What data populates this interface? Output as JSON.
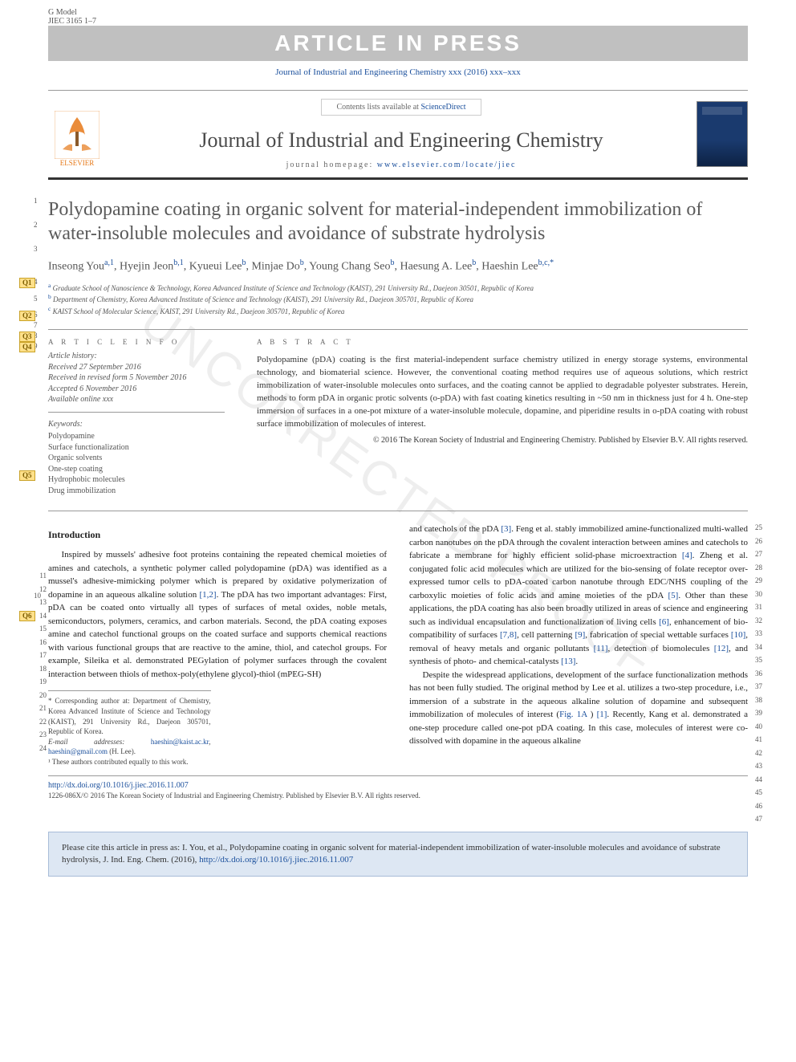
{
  "header": {
    "g_model": "G Model",
    "jiec_code": "JIEC 3165 1–7",
    "watermark_banner": "ARTICLE IN PRESS",
    "journal_ref": "Journal of Industrial and Engineering Chemistry xxx (2016) xxx–xxx",
    "contents_prefix": "Contents lists available at ",
    "contents_link": "ScienceDirect",
    "journal_title": "Journal of Industrial and Engineering Chemistry",
    "homepage_prefix": "journal homepage: ",
    "homepage_link": "www.elsevier.com/locate/jiec",
    "elsevier_label": "ELSEVIER"
  },
  "title": "Polydopamine coating in organic solvent for material-independent immobilization of water-insoluble molecules and avoidance of substrate hydrolysis",
  "authors_html": "Inseong You<sup>a,1</sup>, Hyejin Jeon<sup>b,1</sup>, Kyueui Lee<sup>b</sup>, Minjae Do<sup>b</sup>, Young Chang Seo<sup>b</sup>, Haesung A. Lee<sup>b</sup>, Haeshin Lee<sup>b,c,*</sup>",
  "affiliations": {
    "a": "Graduate School of Nanoscience & Technology, Korea Advanced Institute of Science and Technology (KAIST), 291 University Rd., Daejeon 30501, Republic of Korea",
    "b": "Department of Chemistry, Korea Advanced Institute of Science and Technology (KAIST), 291 University Rd., Daejeon 305701, Republic of Korea",
    "c": "KAIST School of Molecular Science, KAIST, 291 University Rd., Daejeon 305701, Republic of Korea"
  },
  "info": {
    "heading": "A R T I C L E   I N F O",
    "history_heading": "Article history:",
    "received": "Received 27 September 2016",
    "revised": "Received in revised form 5 November 2016",
    "accepted": "Accepted 6 November 2016",
    "online": "Available online xxx",
    "keywords_heading": "Keywords:",
    "keywords": [
      "Polydopamine",
      "Surface functionalization",
      "Organic solvents",
      "One-step coating",
      "Hydrophobic molecules",
      "Drug immobilization"
    ]
  },
  "abstract": {
    "heading": "A B S T R A C T",
    "text": "Polydopamine (pDA) coating is the first material-independent surface chemistry utilized in energy storage systems, environmental technology, and biomaterial science. However, the conventional coating method requires use of aqueous solutions, which restrict immobilization of water-insoluble molecules onto surfaces, and the coating cannot be applied to degradable polyester substrates. Herein, methods to form pDA in organic protic solvents (o-pDA) with fast coating kinetics resulting in ~50 nm in thickness just for 4 h. One-step immersion of surfaces in a one-pot mixture of a water-insoluble molecule, dopamine, and piperidine results in o-pDA coating with robust surface immobilization of molecules of interest.",
    "copyright": "© 2016 The Korean Society of Industrial and Engineering Chemistry. Published by Elsevier B.V. All rights reserved."
  },
  "intro_heading": "Introduction",
  "col1_text": "Inspired by mussels' adhesive foot proteins containing the repeated chemical moieties of amines and catechols, a synthetic polymer called polydopamine (pDA) was identified as a mussel's adhesive-mimicking polymer which is prepared by oxidative polymerization of dopamine in an aqueous alkaline solution [1,2]. The pDA has two important advantages: First, pDA can be coated onto virtually all types of surfaces of metal oxides, noble metals, semiconductors, polymers, ceramics, and carbon materials. Second, the pDA coating exposes amine and catechol functional groups on the coated surface and supports chemical reactions with various functional groups that are reactive to the amine, thiol, and catechol groups. For example, Sileika et al. demonstrated PEGylation of polymer surfaces through the covalent interaction between thiols of methox-poly(ethylene glycol)-thiol (mPEG-SH)",
  "col2_para1": "and catechols of the pDA [3]. Feng et al. stably immobilized amine-functionalized multi-walled carbon nanotubes on the pDA through the covalent interaction between amines and catechols to fabricate a membrane for highly efficient solid-phase microextraction [4]. Zheng et al. conjugated folic acid molecules which are utilized for the bio-sensing of folate receptor over-expressed tumor cells to pDA-coated carbon nanotube through EDC/NHS coupling of the carboxylic moieties of folic acids and amine moieties of the pDA [5]. Other than these applications, the pDA coating has also been broadly utilized in areas of science and engineering such as individual encapsulation and functionalization of living cells [6], enhancement of bio-compatibility of surfaces [7,8], cell patterning [9], fabrication of special wettable surfaces [10], removal of heavy metals and organic pollutants [11], detection of biomolecules [12], and synthesis of photo- and chemical-catalysts [13].",
  "col2_para2": "Despite the widespread applications, development of the surface functionalization methods has not been fully studied. The original method by Lee et al. utilizes a two-step procedure, i.e., immersion of a substrate in the aqueous alkaline solution of dopamine and subsequent immobilization of molecules of interest (Fig. 1A ) [1]. Recently, Kang et al. demonstrated a one-step procedure called one-pot pDA coating. In this case, molecules of interest were co-dissolved with dopamine in the aqueous alkaline",
  "footnotes": {
    "corresponding": "* Corresponding author at: Department of Chemistry, Korea Advanced Institute of Science and Technology (KAIST), 291 University Rd., Daejeon 305701, Republic of Korea.",
    "email_label": "E-mail addresses: ",
    "email1": "haeshin@kaist.ac.kr",
    "email2": "haeshin@gmail.com",
    "email_suffix": " (H. Lee).",
    "equal": "¹ These authors contributed equally to this work."
  },
  "doi": {
    "link": "http://dx.doi.org/10.1016/j.jiec.2016.11.007",
    "issn_line": "1226-086X/© 2016 The Korean Society of Industrial and Engineering Chemistry. Published by Elsevier B.V. All rights reserved."
  },
  "cite_box": {
    "text_prefix": "Please cite this article in press as: I. You, et al., Polydopamine coating in organic solvent for material-independent immobilization of water-insoluble molecules and avoidance of substrate hydrolysis, J. Ind. Eng. Chem. (2016), ",
    "link": "http://dx.doi.org/10.1016/j.jiec.2016.11.007"
  },
  "q_badges": [
    "Q1",
    "Q2",
    "Q3",
    "Q4",
    "Q5",
    "Q6"
  ],
  "line_numbers_title": [
    "1",
    "2",
    "3",
    "4",
    "5",
    "6",
    "7",
    "8",
    "9"
  ],
  "line_numbers_intro": [
    "10",
    "11",
    "12",
    "13",
    "14",
    "15",
    "16",
    "17",
    "18",
    "19",
    "20",
    "21",
    "22",
    "23",
    "24"
  ],
  "line_numbers_right": [
    "25",
    "26",
    "27",
    "28",
    "29",
    "30",
    "31",
    "32",
    "33",
    "34",
    "35",
    "36",
    "37",
    "38",
    "39",
    "40",
    "41",
    "42",
    "43",
    "44",
    "45",
    "46",
    "47"
  ],
  "watermark_diag": "UNCORRECTED PROOF",
  "colors": {
    "link": "#1a4f9c",
    "banner_bg": "#c0c0c0",
    "q_badge_bg": "#ffe08a",
    "q_badge_border": "#c9a227",
    "cite_bg": "#dde7f3",
    "cite_border": "#a8bcd8",
    "elsevier_orange": "#e67817"
  },
  "fonts": {
    "body": "Georgia, Times New Roman, serif",
    "title_size_pt": 24,
    "journal_title_size_pt": 26,
    "body_size_pt": 11,
    "small_pt": 9
  }
}
